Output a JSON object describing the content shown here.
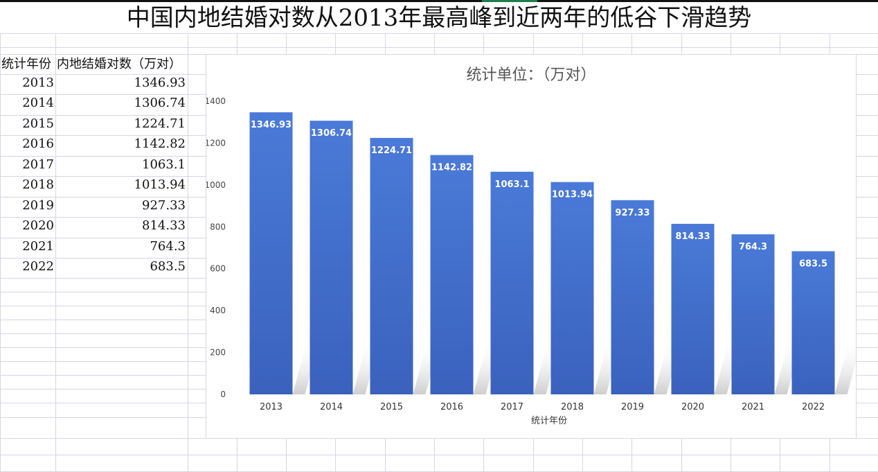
{
  "title": "中国内地结婚对数从2013年最高峰到近两年的低谷下滑趋势",
  "table": {
    "headers": [
      "统计年份",
      "内地结婚对数（万对）"
    ],
    "rows": [
      {
        "year": "2013",
        "value": "1346.93"
      },
      {
        "year": "2014",
        "value": "1306.74"
      },
      {
        "year": "2015",
        "value": "1224.71"
      },
      {
        "year": "2016",
        "value": "1142.82"
      },
      {
        "year": "2017",
        "value": "1063.1"
      },
      {
        "year": "2018",
        "value": "1013.94"
      },
      {
        "year": "2019",
        "value": "927.33"
      },
      {
        "year": "2020",
        "value": "814.33"
      },
      {
        "year": "2021",
        "value": "764.3"
      },
      {
        "year": "2022",
        "value": "683.5"
      }
    ]
  },
  "chart_data": {
    "type": "bar",
    "title": "统计单位：（万对）",
    "xlabel": "统计年份",
    "ylabel": "",
    "categories": [
      "2013",
      "2014",
      "2015",
      "2016",
      "2017",
      "2018",
      "2019",
      "2020",
      "2021",
      "2022"
    ],
    "values": [
      1346.93,
      1306.74,
      1224.71,
      1142.82,
      1063.1,
      1013.94,
      927.33,
      814.33,
      764.3,
      683.5
    ],
    "data_labels": [
      "1346.93",
      "1306.74",
      "1224.71",
      "1142.82",
      "1063.1",
      "1013.94",
      "927.33",
      "814.33",
      "764.3",
      "683.5"
    ],
    "ylim": [
      0,
      1400
    ],
    "yticks": [
      "0",
      "200",
      "400",
      "600",
      "800",
      "1000",
      "1200",
      "1400"
    ],
    "grid": false,
    "legend": "none",
    "bar_color": "#3f6fcf"
  }
}
